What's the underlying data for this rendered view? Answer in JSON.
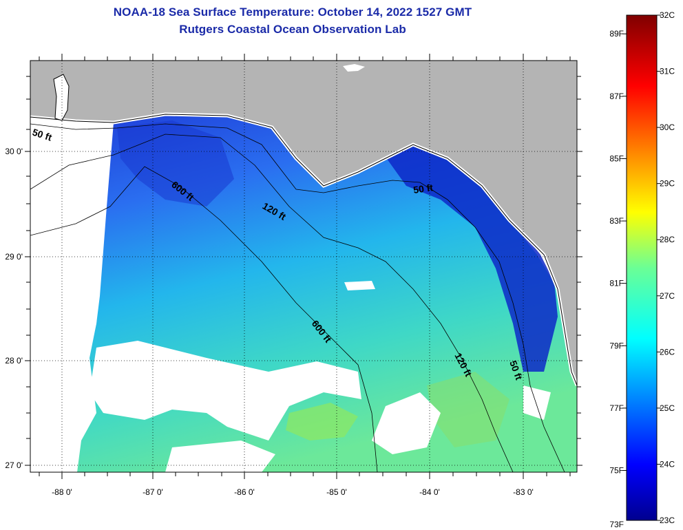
{
  "title": {
    "line1": "NOAA-18 Sea Surface Temperature:  October 14, 2022 1527 GMT",
    "line2": "Rutgers Coastal Ocean Observation Lab"
  },
  "axes": {
    "longitude_labels": [
      "-88 0'",
      "-87 0'",
      "-86 0'",
      "-85 0'",
      "-84 0'",
      "-83 0'"
    ],
    "longitudes": [
      -88,
      -87,
      -86,
      -85,
      -84,
      -83
    ],
    "latitude_labels": [
      "30 0'",
      "29 0'",
      "28 0'",
      "27 0'"
    ],
    "latitudes": [
      30,
      29,
      28,
      27
    ],
    "lon_range": [
      -88.33,
      -82.46
    ],
    "lat_range": [
      26.98,
      30.85
    ]
  },
  "contours": {
    "labels": [
      {
        "id": "c50a",
        "text": "50 ft"
      },
      {
        "id": "c600a",
        "text": "600 ft"
      },
      {
        "id": "c120a",
        "text": "120 ft"
      },
      {
        "id": "c50b",
        "text": "50 ft"
      },
      {
        "id": "c600b",
        "text": "600 ft"
      },
      {
        "id": "c120b",
        "text": "120 ft"
      },
      {
        "id": "c50c",
        "text": "50 ft"
      }
    ]
  },
  "colorbar": {
    "fahrenheit": [
      "89F",
      "87F",
      "85F",
      "83F",
      "81F",
      "79F",
      "77F",
      "75F",
      "73F"
    ],
    "celsius": [
      "32C",
      "31C",
      "30C",
      "29C",
      "28C",
      "27C",
      "26C",
      "25C",
      "24C",
      "23C"
    ],
    "range_c": [
      23,
      32
    ]
  },
  "colors": {
    "title": "#1a2aa8",
    "land": "#b4b4b4",
    "cloud": "#ffffff"
  }
}
